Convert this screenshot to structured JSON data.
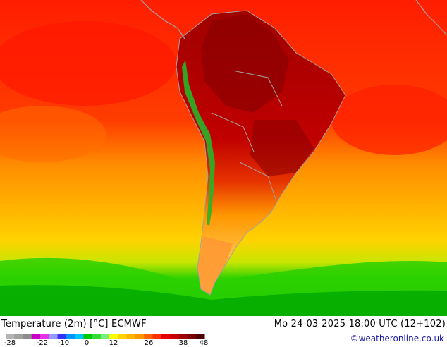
{
  "header": {
    "title": "Temperature (2m) [°C] ECMWF",
    "run": "Mo 24-03-2025 18:00 UTC (12+102)",
    "credit": "©weatheronline.co.uk"
  },
  "legend": {
    "ticks": [
      "-28",
      "-22",
      "-10",
      "0",
      "12",
      "26",
      "38",
      "48"
    ],
    "colors": [
      "#b4b4b4",
      "#a0a0a0",
      "#8c8c8c",
      "#c800c8",
      "#e632e6",
      "#9696ff",
      "#3232ff",
      "#0096ff",
      "#00c8ff",
      "#00c800",
      "#32dc32",
      "#78f078",
      "#ffff00",
      "#ffd200",
      "#ffb400",
      "#ff9600",
      "#ff6400",
      "#ff3200",
      "#e60000",
      "#c80000",
      "#a00000",
      "#780000",
      "#500000"
    ]
  },
  "map": {
    "colors": {
      "ocean_cold": "#00c800",
      "ocean_cool": "#9be000",
      "ocean_mild": "#ffc800",
      "ocean_warm": "#ff8c00",
      "ocean_hot": "#ff1e00",
      "land_hot": "#b40000",
      "land_veryhot": "#8c0000",
      "andes_cool": "#28b428",
      "border": "#a0a0a0"
    }
  }
}
